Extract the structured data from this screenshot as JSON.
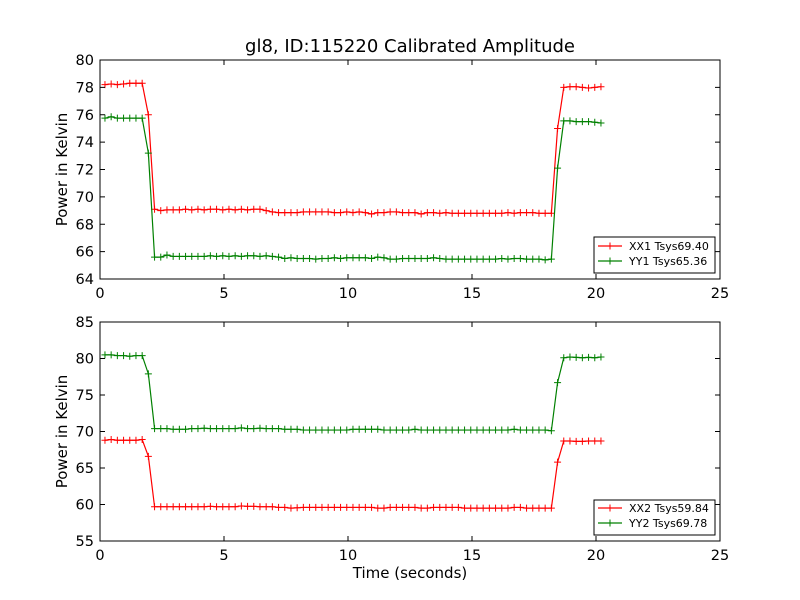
{
  "chart_data": [
    {
      "type": "line",
      "title": "gl8, ID:115220 Calibrated Amplitude",
      "xlabel": "",
      "ylabel": "Power in Kelvin",
      "xlim": [
        0,
        25
      ],
      "ylim": [
        64,
        80
      ],
      "xticks": [
        0,
        5,
        10,
        15,
        20,
        25
      ],
      "yticks": [
        64,
        66,
        68,
        70,
        72,
        74,
        76,
        78,
        80
      ],
      "grid": false,
      "legend_position": "lower-right",
      "colors": [
        "#ff0000",
        "#008000"
      ],
      "series": [
        {
          "name": "XX1 Tsys69.40",
          "color": "#ff0000",
          "base": 68.9,
          "x": [
            0.2,
            0.45,
            0.7,
            0.95,
            1.2,
            1.45,
            1.7,
            1.95,
            2.2,
            2.45,
            2.7,
            2.95,
            3.2,
            3.45,
            3.7,
            3.95,
            4.2,
            4.45,
            4.7,
            4.95,
            5.2,
            5.45,
            5.7,
            5.95,
            6.2,
            6.45,
            6.7,
            6.95,
            7.2,
            7.45,
            7.7,
            7.95,
            8.2,
            8.45,
            8.7,
            8.95,
            9.2,
            9.45,
            9.7,
            9.95,
            10.2,
            10.45,
            10.7,
            10.95,
            11.2,
            11.45,
            11.7,
            11.95,
            12.2,
            12.45,
            12.7,
            12.95,
            13.2,
            13.45,
            13.7,
            13.95,
            14.2,
            14.45,
            14.7,
            14.95,
            15.2,
            15.45,
            15.7,
            15.95,
            16.2,
            16.45,
            16.7,
            16.95,
            17.2,
            17.45,
            17.7,
            17.95,
            18.2,
            18.45,
            18.7,
            18.95,
            19.2,
            19.45,
            19.7,
            19.95,
            20.2
          ],
          "y": [
            78.2,
            78.25,
            78.2,
            78.25,
            78.3,
            78.3,
            78.3,
            76.0,
            69.1,
            69.0,
            69.05,
            69.05,
            69.05,
            69.1,
            69.05,
            69.1,
            69.05,
            69.1,
            69.1,
            69.05,
            69.1,
            69.05,
            69.1,
            69.05,
            69.1,
            69.1,
            69.0,
            68.9,
            68.85,
            68.85,
            68.85,
            68.85,
            68.9,
            68.9,
            68.9,
            68.9,
            68.9,
            68.85,
            68.85,
            68.9,
            68.85,
            68.9,
            68.85,
            68.75,
            68.85,
            68.85,
            68.9,
            68.9,
            68.85,
            68.85,
            68.85,
            68.75,
            68.85,
            68.85,
            68.8,
            68.85,
            68.8,
            68.8,
            68.8,
            68.8,
            68.8,
            68.8,
            68.8,
            68.8,
            68.8,
            68.85,
            68.8,
            68.85,
            68.85,
            68.85,
            68.8,
            68.8,
            68.8,
            75.0,
            78.0,
            78.05,
            78.05,
            78.0,
            77.95,
            78.0,
            78.05
          ]
        },
        {
          "name": "YY1 Tsys65.36",
          "color": "#008000",
          "base": 65.5,
          "x": [
            0.2,
            0.45,
            0.7,
            0.95,
            1.2,
            1.45,
            1.7,
            1.95,
            2.2,
            2.45,
            2.7,
            2.95,
            3.2,
            3.45,
            3.7,
            3.95,
            4.2,
            4.45,
            4.7,
            4.95,
            5.2,
            5.45,
            5.7,
            5.95,
            6.2,
            6.45,
            6.7,
            6.95,
            7.2,
            7.45,
            7.7,
            7.95,
            8.2,
            8.45,
            8.7,
            8.95,
            9.2,
            9.45,
            9.7,
            9.95,
            10.2,
            10.45,
            10.7,
            10.95,
            11.2,
            11.45,
            11.7,
            11.95,
            12.2,
            12.45,
            12.7,
            12.95,
            13.2,
            13.45,
            13.7,
            13.95,
            14.2,
            14.45,
            14.7,
            14.95,
            15.2,
            15.45,
            15.7,
            15.95,
            16.2,
            16.45,
            16.7,
            16.95,
            17.2,
            17.45,
            17.7,
            17.95,
            18.2,
            18.45,
            18.7,
            18.95,
            19.2,
            19.45,
            19.7,
            19.95,
            20.2
          ],
          "y": [
            75.75,
            75.85,
            75.75,
            75.75,
            75.75,
            75.75,
            75.75,
            73.2,
            65.6,
            65.6,
            65.75,
            65.65,
            65.65,
            65.65,
            65.65,
            65.65,
            65.65,
            65.7,
            65.65,
            65.7,
            65.65,
            65.7,
            65.65,
            65.7,
            65.7,
            65.65,
            65.7,
            65.65,
            65.6,
            65.5,
            65.55,
            65.5,
            65.5,
            65.5,
            65.45,
            65.5,
            65.5,
            65.55,
            65.5,
            65.55,
            65.55,
            65.55,
            65.55,
            65.5,
            65.6,
            65.55,
            65.45,
            65.45,
            65.5,
            65.5,
            65.5,
            65.5,
            65.5,
            65.55,
            65.5,
            65.45,
            65.45,
            65.45,
            65.45,
            65.45,
            65.45,
            65.45,
            65.45,
            65.45,
            65.5,
            65.45,
            65.5,
            65.5,
            65.45,
            65.45,
            65.45,
            65.4,
            65.45,
            72.1,
            75.55,
            75.55,
            75.5,
            75.5,
            75.5,
            75.45,
            75.4
          ]
        }
      ]
    },
    {
      "type": "line",
      "title": "",
      "xlabel": "Time (seconds)",
      "ylabel": "Power in Kelvin",
      "xlim": [
        0,
        25
      ],
      "ylim": [
        55,
        85
      ],
      "xticks": [
        0,
        5,
        10,
        15,
        20,
        25
      ],
      "yticks": [
        55,
        60,
        65,
        70,
        75,
        80,
        85
      ],
      "grid": false,
      "legend_position": "lower-right",
      "colors": [
        "#ff0000",
        "#008000"
      ],
      "series": [
        {
          "name": "XX2 Tsys59.84",
          "color": "#ff0000",
          "base": 55,
          "x": [
            0.2,
            0.45,
            0.7,
            0.95,
            1.2,
            1.45,
            1.7,
            1.95,
            2.2,
            2.45,
            2.7,
            2.95,
            3.2,
            3.45,
            3.7,
            3.95,
            4.2,
            4.45,
            4.7,
            4.95,
            5.2,
            5.45,
            5.7,
            5.95,
            6.2,
            6.45,
            6.7,
            6.95,
            7.2,
            7.45,
            7.7,
            7.95,
            8.2,
            8.45,
            8.7,
            8.95,
            9.2,
            9.45,
            9.7,
            9.95,
            10.2,
            10.45,
            10.7,
            10.95,
            11.2,
            11.45,
            11.7,
            11.95,
            12.2,
            12.45,
            12.7,
            12.95,
            13.2,
            13.45,
            13.7,
            13.95,
            14.2,
            14.45,
            14.7,
            14.95,
            15.2,
            15.45,
            15.7,
            15.95,
            16.2,
            16.45,
            16.7,
            16.95,
            17.2,
            17.45,
            17.7,
            17.95,
            18.2,
            18.45,
            18.7,
            18.95,
            19.2,
            19.45,
            19.7,
            19.95,
            20.2
          ],
          "y": [
            68.8,
            68.9,
            68.8,
            68.8,
            68.8,
            68.8,
            68.9,
            66.6,
            59.7,
            59.7,
            59.7,
            59.7,
            59.7,
            59.7,
            59.7,
            59.7,
            59.7,
            59.75,
            59.7,
            59.7,
            59.7,
            59.7,
            59.8,
            59.75,
            59.75,
            59.7,
            59.7,
            59.7,
            59.6,
            59.6,
            59.5,
            59.55,
            59.6,
            59.6,
            59.6,
            59.6,
            59.6,
            59.6,
            59.6,
            59.6,
            59.6,
            59.6,
            59.6,
            59.6,
            59.5,
            59.5,
            59.6,
            59.6,
            59.6,
            59.6,
            59.6,
            59.5,
            59.5,
            59.6,
            59.6,
            59.6,
            59.6,
            59.6,
            59.5,
            59.5,
            59.5,
            59.5,
            59.5,
            59.5,
            59.5,
            59.5,
            59.6,
            59.6,
            59.5,
            59.5,
            59.5,
            59.5,
            59.5,
            65.8,
            68.7,
            68.7,
            68.65,
            68.65,
            68.7,
            68.7,
            68.7
          ]
        },
        {
          "name": "YY2 Tsys69.78",
          "color": "#008000",
          "base": 55,
          "x": [
            0.2,
            0.45,
            0.7,
            0.95,
            1.2,
            1.45,
            1.7,
            1.95,
            2.2,
            2.45,
            2.7,
            2.95,
            3.2,
            3.45,
            3.7,
            3.95,
            4.2,
            4.45,
            4.7,
            4.95,
            5.2,
            5.45,
            5.7,
            5.95,
            6.2,
            6.45,
            6.7,
            6.95,
            7.2,
            7.45,
            7.7,
            7.95,
            8.2,
            8.45,
            8.7,
            8.95,
            9.2,
            9.45,
            9.7,
            9.95,
            10.2,
            10.45,
            10.7,
            10.95,
            11.2,
            11.45,
            11.7,
            11.95,
            12.2,
            12.45,
            12.7,
            12.95,
            13.2,
            13.45,
            13.7,
            13.95,
            14.2,
            14.45,
            14.7,
            14.95,
            15.2,
            15.45,
            15.7,
            15.95,
            16.2,
            16.45,
            16.7,
            16.95,
            17.2,
            17.45,
            17.7,
            17.95,
            18.2,
            18.45,
            18.7,
            18.95,
            19.2,
            19.45,
            19.7,
            19.95,
            20.2
          ],
          "y": [
            80.5,
            80.5,
            80.4,
            80.4,
            80.3,
            80.4,
            80.4,
            77.9,
            70.4,
            70.4,
            70.4,
            70.3,
            70.3,
            70.3,
            70.4,
            70.4,
            70.45,
            70.4,
            70.4,
            70.4,
            70.4,
            70.4,
            70.5,
            70.4,
            70.4,
            70.45,
            70.4,
            70.4,
            70.4,
            70.3,
            70.3,
            70.3,
            70.2,
            70.2,
            70.2,
            70.2,
            70.2,
            70.2,
            70.2,
            70.2,
            70.3,
            70.3,
            70.3,
            70.3,
            70.3,
            70.2,
            70.2,
            70.2,
            70.2,
            70.2,
            70.3,
            70.2,
            70.2,
            70.2,
            70.2,
            70.2,
            70.2,
            70.2,
            70.2,
            70.2,
            70.2,
            70.2,
            70.2,
            70.2,
            70.2,
            70.2,
            70.3,
            70.2,
            70.2,
            70.2,
            70.2,
            70.2,
            70.1,
            76.7,
            80.1,
            80.2,
            80.15,
            80.1,
            80.15,
            80.1,
            80.2
          ]
        }
      ]
    }
  ]
}
